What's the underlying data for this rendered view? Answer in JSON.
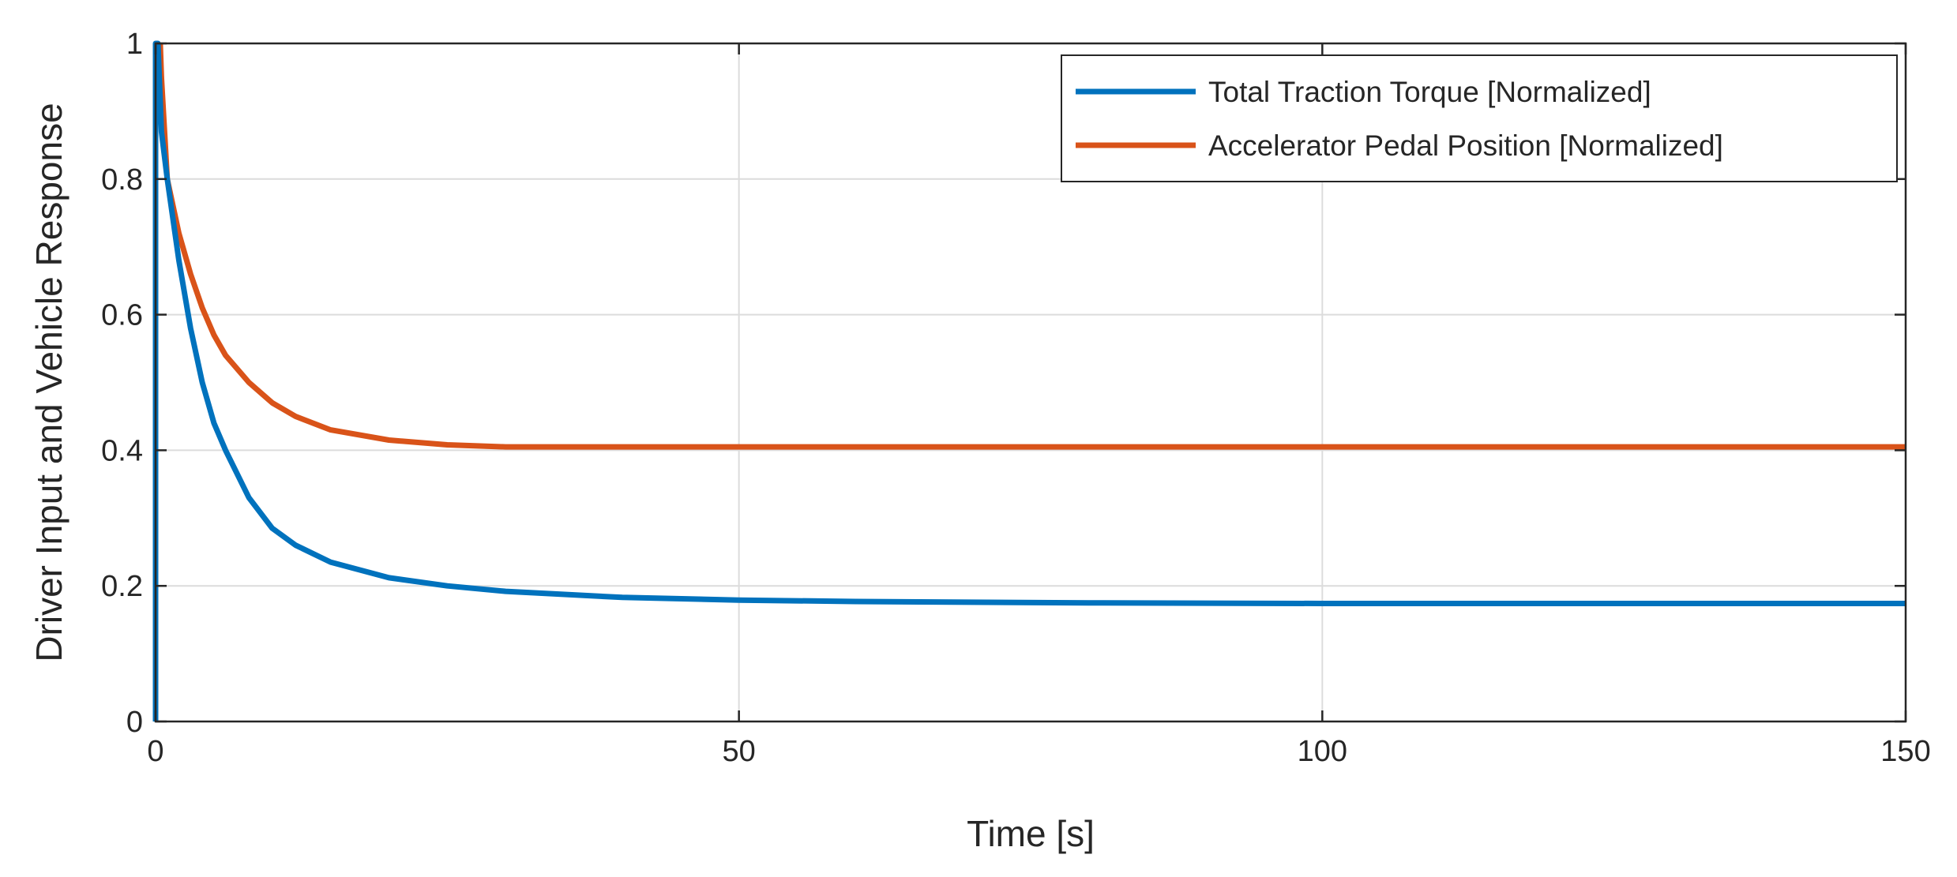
{
  "chart_data": {
    "type": "line",
    "title": "",
    "xlabel": "Time [s]",
    "ylabel": "Driver Input and Vehicle Response",
    "xlim": [
      0,
      150
    ],
    "ylim": [
      0,
      1
    ],
    "xticks": [
      0,
      50,
      100,
      150
    ],
    "yticks": [
      0,
      0.2,
      0.4,
      0.6,
      0.8,
      1
    ],
    "xtick_labels": [
      "0",
      "50",
      "100",
      "150"
    ],
    "ytick_labels": [
      "0",
      "0.2",
      "0.4",
      "0.6",
      "0.8",
      "1"
    ],
    "grid": true,
    "legend_position": "top-right",
    "series": [
      {
        "name": "Total Traction Torque [Normalized]",
        "color": "#0072BD",
        "x": [
          0,
          0,
          0.2,
          0.5,
          1,
          2,
          3,
          4,
          5,
          6,
          8,
          10,
          12,
          15,
          20,
          25,
          30,
          40,
          50,
          60,
          80,
          100,
          120,
          150
        ],
        "y": [
          0,
          1.0,
          1.0,
          0.87,
          0.8,
          0.68,
          0.58,
          0.5,
          0.44,
          0.4,
          0.33,
          0.285,
          0.26,
          0.235,
          0.212,
          0.2,
          0.192,
          0.183,
          0.179,
          0.177,
          0.175,
          0.174,
          0.174,
          0.174
        ]
      },
      {
        "name": "Accelerator Pedal Position [Normalized]",
        "color": "#D95319",
        "x": [
          0.4,
          0.5,
          1,
          2,
          3,
          4,
          5,
          6,
          8,
          10,
          12,
          15,
          20,
          25,
          30,
          40,
          50,
          60,
          80,
          100,
          120,
          150
        ],
        "y": [
          1.0,
          0.95,
          0.8,
          0.72,
          0.66,
          0.61,
          0.57,
          0.54,
          0.5,
          0.47,
          0.45,
          0.43,
          0.415,
          0.408,
          0.405,
          0.405,
          0.405,
          0.405,
          0.405,
          0.405,
          0.405,
          0.405
        ]
      }
    ]
  }
}
